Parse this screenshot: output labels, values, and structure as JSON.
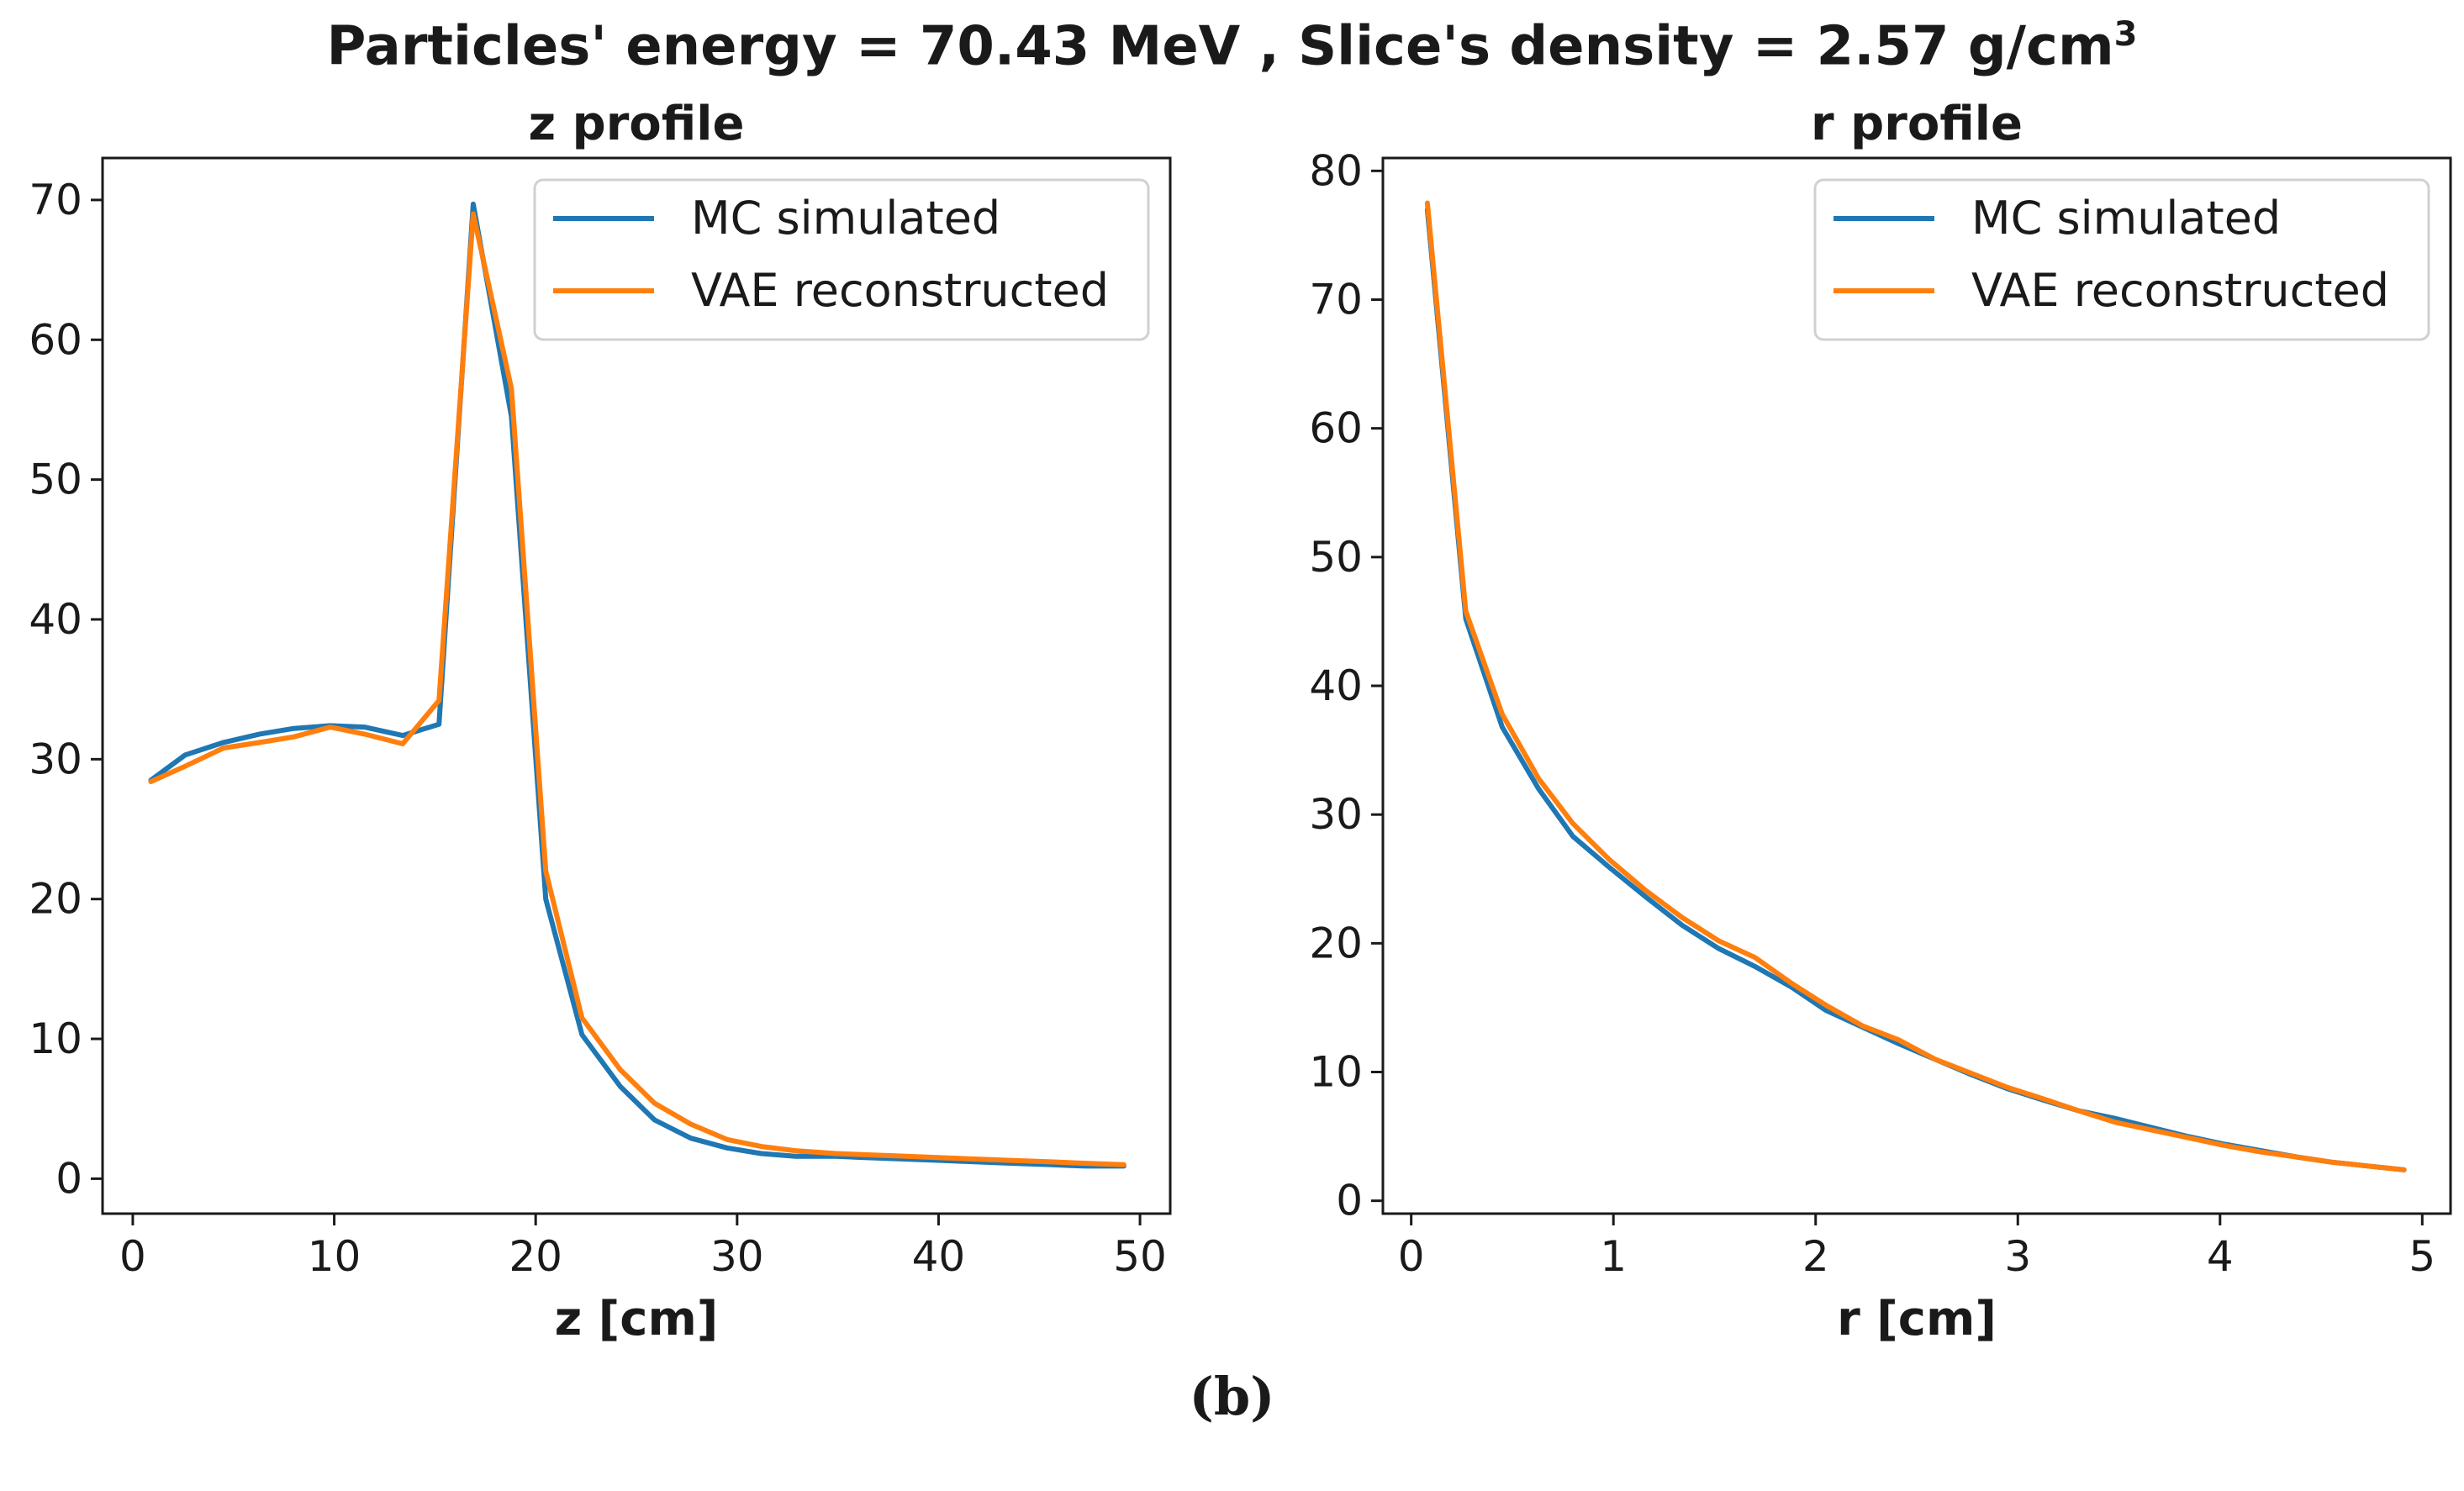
{
  "figure": {
    "suptitle_main": "Particles' energy = 70.43 MeV , Slice's density = 2.57 g/cm",
    "suptitle_sup": "3",
    "caption": "(b)"
  },
  "colors": {
    "mc": "#1f77b4",
    "vae": "#ff7f0e"
  },
  "chart_data": [
    {
      "type": "line",
      "title": "z profile",
      "xlabel": "z [cm]",
      "ylabel": "",
      "xlim": [
        -1.5,
        51.5
      ],
      "ylim": [
        -2.5,
        73
      ],
      "xticks": [
        0,
        10,
        20,
        30,
        40,
        50
      ],
      "yticks": [
        0,
        10,
        20,
        30,
        40,
        50,
        60,
        70
      ],
      "legend": "top-right",
      "series": [
        {
          "name": "MC simulated",
          "color": "#1f77b4",
          "x": [
            0.9,
            2.6,
            4.5,
            6.3,
            8.0,
            9.8,
            11.5,
            13.4,
            15.2,
            16.9,
            18.8,
            20.5,
            22.3,
            24.2,
            25.9,
            27.7,
            29.5,
            31.2,
            32.9,
            34.9,
            36.6,
            38.4,
            40.2,
            41.9,
            43.7,
            45.6,
            47.3,
            49.2
          ],
          "y": [
            28.5,
            30.3,
            31.2,
            31.8,
            32.2,
            32.4,
            32.3,
            31.7,
            32.5,
            69.7,
            54.5,
            20.0,
            10.3,
            6.6,
            4.2,
            2.9,
            2.2,
            1.8,
            1.6,
            1.6,
            1.5,
            1.4,
            1.3,
            1.2,
            1.1,
            1.0,
            0.9,
            0.9
          ]
        },
        {
          "name": "VAE reconstructed",
          "color": "#ff7f0e",
          "x": [
            0.9,
            2.6,
            4.5,
            6.3,
            8.0,
            9.8,
            11.5,
            13.4,
            15.2,
            16.9,
            18.8,
            20.5,
            22.3,
            24.2,
            25.9,
            27.7,
            29.5,
            31.2,
            32.9,
            34.9,
            36.6,
            38.4,
            40.2,
            41.9,
            43.7,
            45.6,
            47.3,
            49.2
          ],
          "y": [
            28.4,
            29.5,
            30.8,
            31.2,
            31.6,
            32.3,
            31.8,
            31.1,
            34.2,
            69.0,
            56.5,
            22.0,
            11.5,
            7.8,
            5.4,
            3.9,
            2.8,
            2.3,
            2.0,
            1.8,
            1.7,
            1.6,
            1.5,
            1.4,
            1.3,
            1.2,
            1.1,
            1.0
          ]
        }
      ]
    },
    {
      "type": "line",
      "title": "r profile",
      "xlabel": "r [cm]",
      "ylabel": "",
      "xlim": [
        -0.14,
        5.14
      ],
      "ylim": [
        -1.0,
        81.0
      ],
      "xticks": [
        0,
        1,
        2,
        3,
        4,
        5
      ],
      "yticks": [
        0,
        10,
        20,
        30,
        40,
        50,
        60,
        70,
        80
      ],
      "legend": "top-right",
      "series": [
        {
          "name": "MC simulated",
          "color": "#1f77b4",
          "x": [
            0.08,
            0.27,
            0.45,
            0.63,
            0.8,
            0.98,
            1.16,
            1.34,
            1.52,
            1.7,
            1.88,
            2.05,
            2.23,
            2.41,
            2.59,
            2.77,
            2.95,
            3.13,
            3.3,
            3.48,
            3.66,
            3.84,
            4.02,
            4.2,
            4.38,
            4.55,
            4.73,
            4.91
          ],
          "y": [
            77.0,
            45.2,
            36.8,
            32.0,
            28.3,
            25.9,
            23.6,
            21.4,
            19.6,
            18.2,
            16.6,
            14.8,
            13.5,
            12.2,
            11.0,
            9.8,
            8.7,
            7.8,
            7.0,
            6.4,
            5.7,
            5.0,
            4.4,
            3.9,
            3.4,
            3.0,
            2.7,
            2.4
          ]
        },
        {
          "name": "VAE reconstructed",
          "color": "#ff7f0e",
          "x": [
            0.08,
            0.27,
            0.45,
            0.63,
            0.8,
            0.98,
            1.16,
            1.34,
            1.52,
            1.7,
            1.88,
            2.05,
            2.23,
            2.41,
            2.59,
            2.77,
            2.95,
            3.13,
            3.3,
            3.48,
            3.66,
            3.84,
            4.02,
            4.2,
            4.38,
            4.55,
            4.73,
            4.91
          ],
          "y": [
            77.5,
            45.8,
            37.8,
            32.8,
            29.3,
            26.5,
            24.1,
            22.0,
            20.2,
            18.9,
            16.9,
            15.2,
            13.6,
            12.5,
            11.0,
            9.9,
            8.8,
            7.9,
            7.0,
            6.1,
            5.5,
            4.9,
            4.3,
            3.8,
            3.4,
            3.0,
            2.7,
            2.4
          ]
        }
      ]
    }
  ]
}
